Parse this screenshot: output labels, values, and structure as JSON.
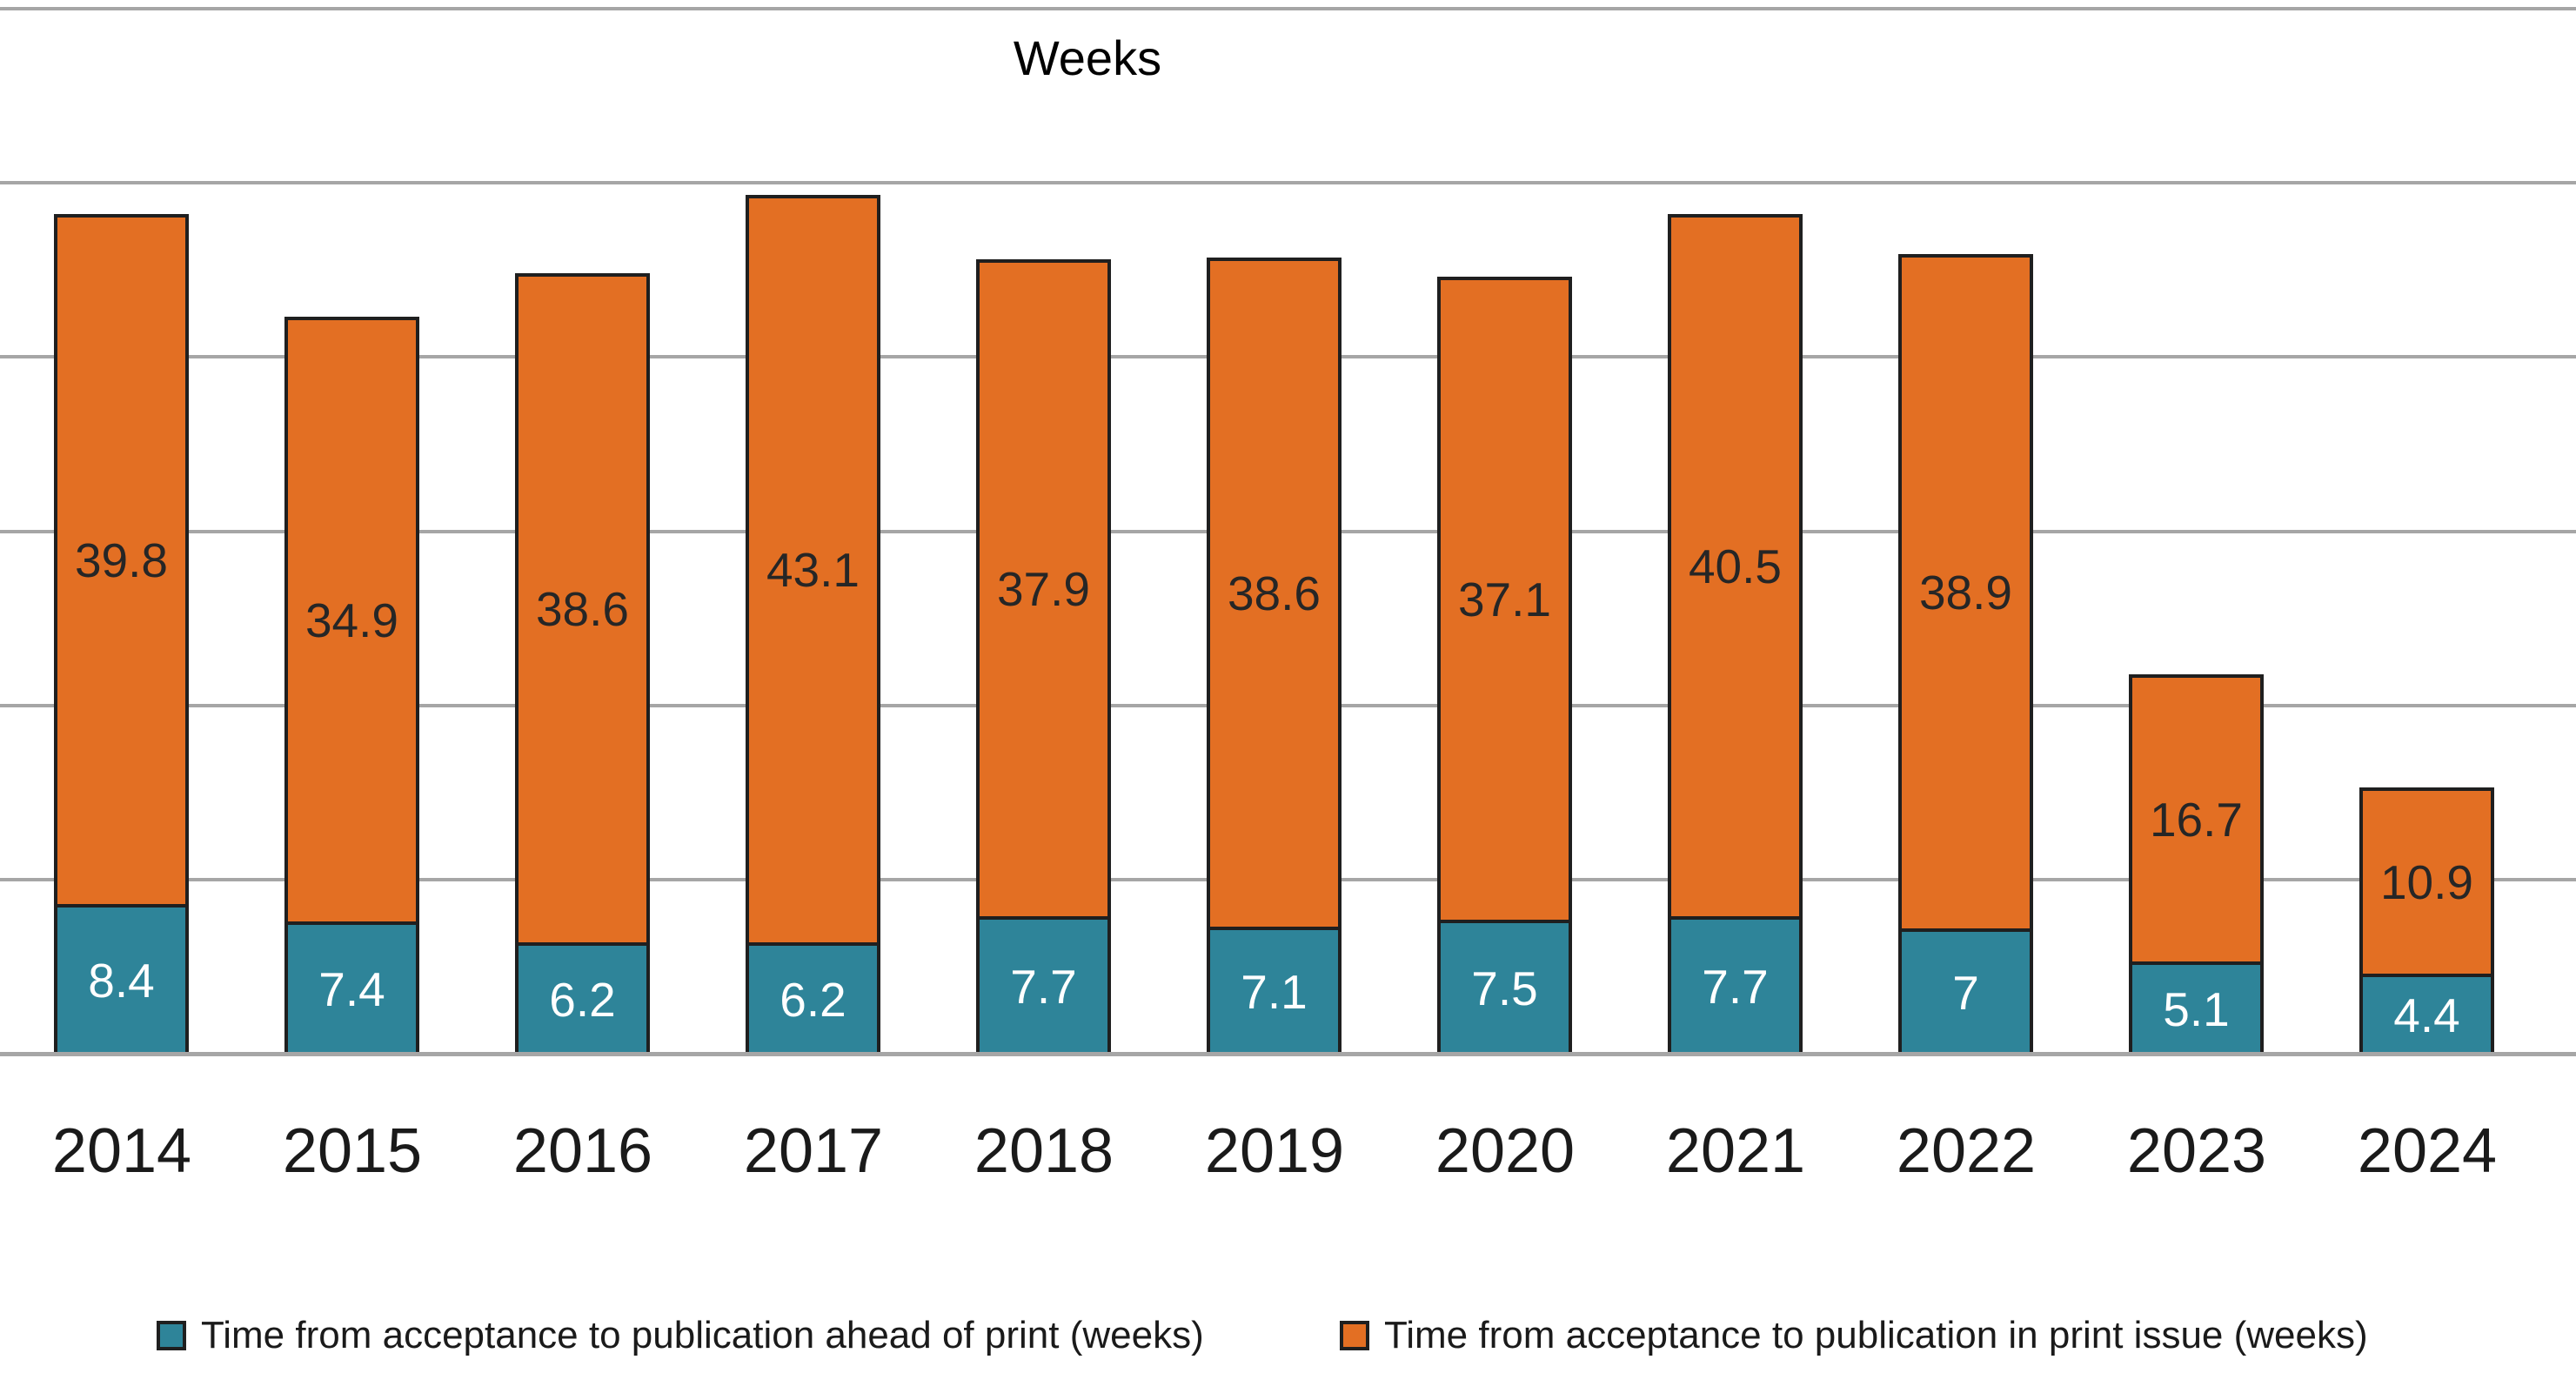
{
  "chart_data": {
    "type": "bar",
    "stacked": true,
    "title": "Weeks",
    "categories": [
      "2014",
      "2015",
      "2016",
      "2017",
      "2018",
      "2019",
      "2020",
      "2021",
      "2022",
      "2023",
      "2024"
    ],
    "series": [
      {
        "name": "Time from acceptance to publication ahead of print (weeks)",
        "color": "#2e8499",
        "label_color": "#ffffff",
        "values": [
          8.4,
          7.4,
          6.2,
          6.2,
          7.7,
          7.1,
          7.5,
          7.7,
          7,
          5.1,
          4.4
        ]
      },
      {
        "name": "Time from acceptance to publication in print issue (weeks)",
        "color": "#e36f23",
        "label_color": "#262626",
        "values": [
          39.8,
          34.9,
          38.6,
          43.1,
          37.9,
          38.6,
          37.1,
          40.5,
          38.9,
          16.7,
          10.9
        ]
      }
    ],
    "ylim": [
      0,
      60
    ],
    "gridline_interval": 10,
    "grid": true,
    "y_axis_labels_visible": false,
    "legend_position": "bottom",
    "colors": {
      "background": "#ffffff",
      "gridline": "#a6a6a6",
      "bar_border": "#1f1f1f"
    }
  }
}
